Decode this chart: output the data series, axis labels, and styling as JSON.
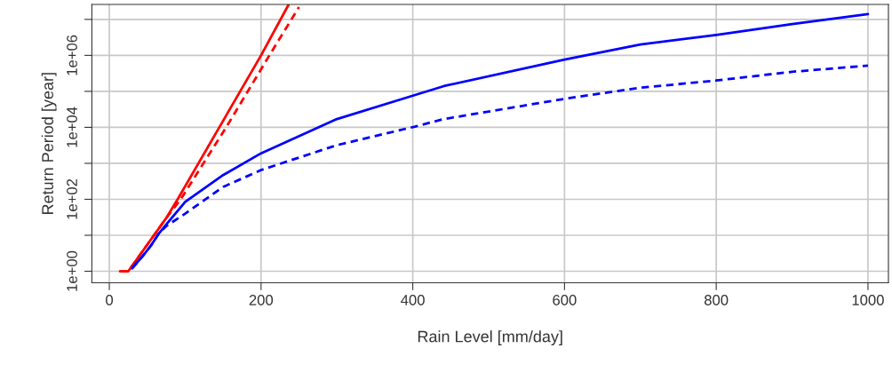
{
  "chart_data": {
    "type": "line",
    "xlabel": "Rain Level [mm/day]",
    "ylabel": "Return Period [year]",
    "log": "y",
    "grid": true,
    "xlim": [
      -23,
      1027
    ],
    "xticks": [
      0,
      200,
      400,
      600,
      800,
      1000
    ],
    "ylim": [
      0.48,
      26000000
    ],
    "yticks": [
      {
        "value": 1,
        "label": "1e+00"
      },
      {
        "value": 10,
        "label": null
      },
      {
        "value": 100,
        "label": "1e+02"
      },
      {
        "value": 1000,
        "label": null
      },
      {
        "value": 10000,
        "label": "1e+04"
      },
      {
        "value": 100000,
        "label": null
      },
      {
        "value": 1000000,
        "label": "1e+06"
      },
      {
        "value": 10000000,
        "label": null
      }
    ],
    "series": [
      {
        "color": "#ff0000",
        "line_style": "solid",
        "x": [
          14,
          25,
          75,
          90,
          145,
          200,
          236
        ],
        "values": [
          1,
          1,
          30,
          100,
          10000,
          1000000,
          25000000
        ]
      },
      {
        "color": "#ff0000",
        "line_style": "dashed",
        "x": [
          14,
          25,
          75,
          94,
          154,
          211,
          250
        ],
        "values": [
          1,
          1,
          30,
          100,
          10000,
          1000000,
          22000000
        ]
      },
      {
        "color": "#0000ff",
        "line_style": "solid",
        "x": [
          30,
          35,
          45,
          55,
          65,
          75,
          100,
          150,
          200,
          300,
          403,
          441,
          600,
          700,
          800,
          900,
          1000
        ],
        "values": [
          1.2,
          1.6,
          2.8,
          5.2,
          11,
          20,
          85,
          470,
          1900,
          17000,
          79000,
          140000,
          760000,
          2000000,
          3700000,
          7400000,
          14000000
        ]
      },
      {
        "color": "#0000ff",
        "line_style": "dashed",
        "x": [
          30,
          35,
          45,
          55,
          65,
          75,
          100,
          150,
          200,
          300,
          403,
          441,
          600,
          700,
          800,
          900,
          1000
        ],
        "values": [
          1.2,
          1.6,
          2.8,
          5.2,
          11,
          18,
          40,
          220,
          650,
          3200,
          10500,
          17000,
          62000,
          126000,
          200000,
          350000,
          520000
        ]
      }
    ]
  }
}
